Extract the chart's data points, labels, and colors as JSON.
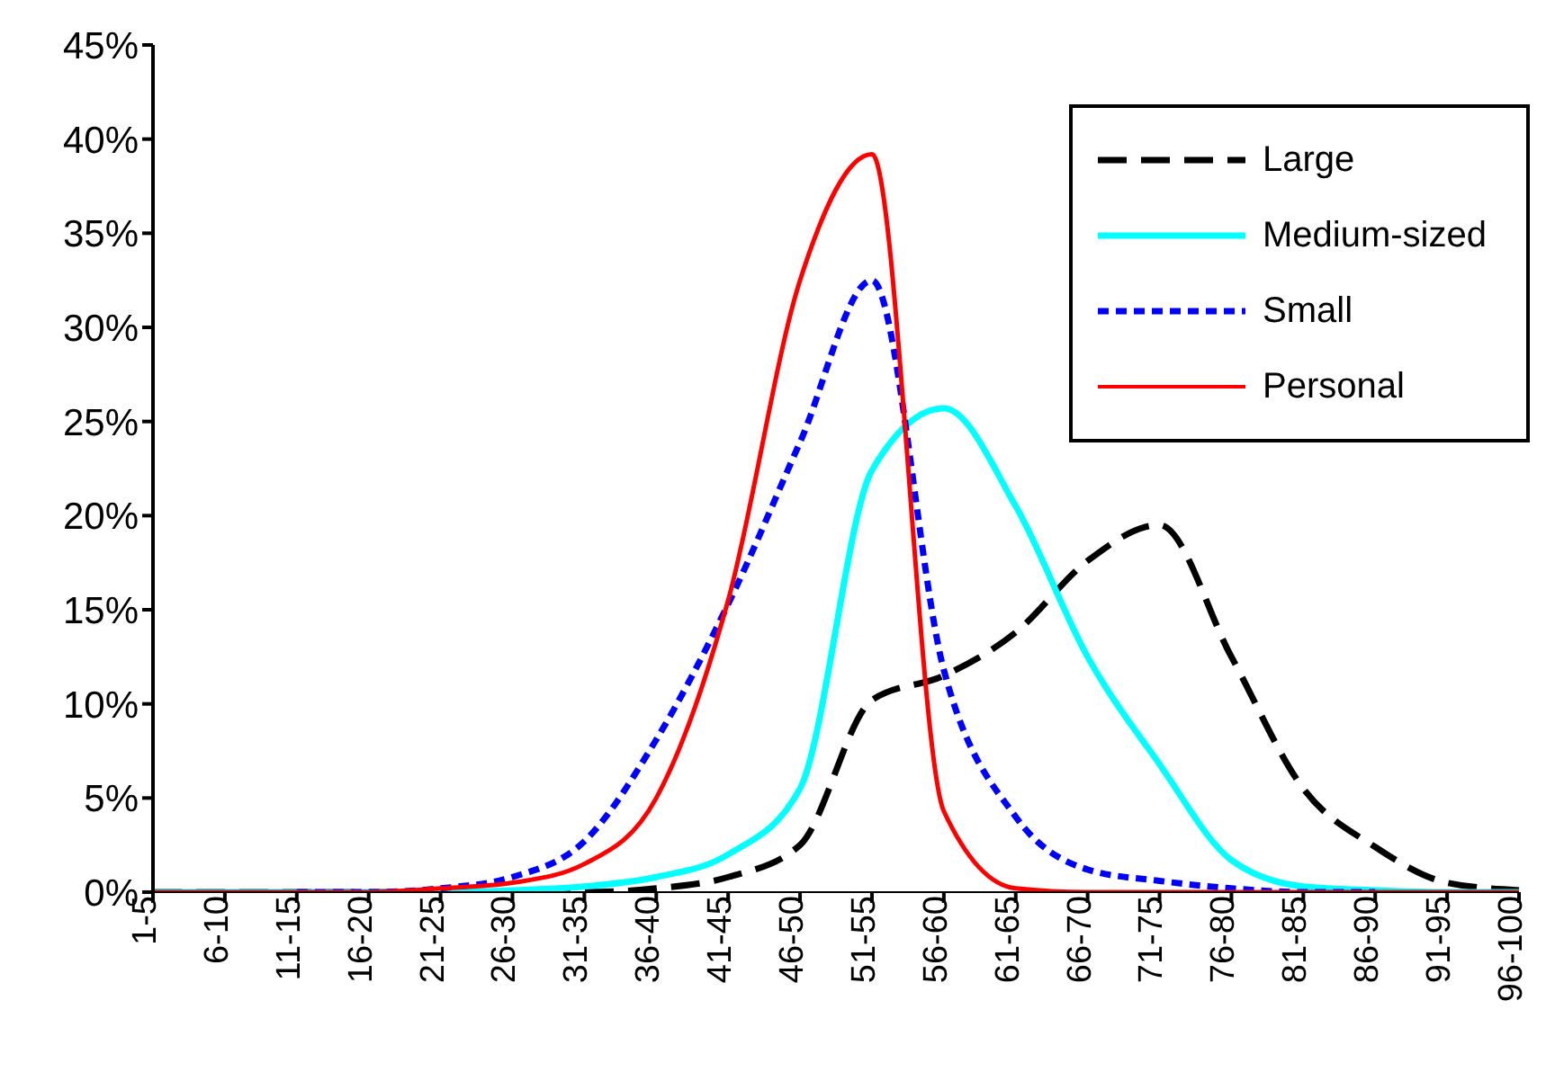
{
  "chart_data": {
    "type": "line",
    "categories": [
      "1-5",
      "6-10",
      "11-15",
      "16-20",
      "21-25",
      "26-30",
      "31-35",
      "36-40",
      "41-45",
      "46-50",
      "51-55",
      "56-60",
      "61-65",
      "66-70",
      "71-75",
      "76-80",
      "81-85",
      "86-90",
      "91-95",
      "96-100"
    ],
    "series": [
      {
        "name": "Large",
        "color": "#000000",
        "line_style": "dashed",
        "values": [
          0,
          0,
          0,
          0,
          0,
          0,
          0,
          0.2,
          0.8,
          2.5,
          10.2,
          11.5,
          13.8,
          17.6,
          19.5,
          12.5,
          5.5,
          2.4,
          0.5,
          0.1
        ]
      },
      {
        "name": "Medium-sized",
        "color": "#00ffff",
        "line_style": "solid",
        "values": [
          0,
          0,
          0,
          0,
          0,
          0.1,
          0.3,
          0.8,
          2,
          5.5,
          22.4,
          25.7,
          20.5,
          12.5,
          6.8,
          1.7,
          0.3,
          0.1,
          0,
          0
        ]
      },
      {
        "name": "Small",
        "color": "#0000ff",
        "line_style": "dotted",
        "values": [
          null,
          null,
          0,
          0,
          0.2,
          0.8,
          2.7,
          8.1,
          15.3,
          23.9,
          32.5,
          11.8,
          4,
          1.2,
          0.6,
          0.2,
          0,
          0,
          null,
          null
        ]
      },
      {
        "name": "Personal",
        "color": "#ff0000",
        "line_style": "solid",
        "values": [
          0,
          0,
          0,
          0,
          0.2,
          0.5,
          1.5,
          5,
          15.5,
          32.5,
          39.2,
          4.3,
          0.2,
          0,
          0,
          0,
          0,
          0,
          0,
          0
        ]
      }
    ],
    "ylim": [
      0,
      45
    ],
    "yticks": [
      {
        "value": 0,
        "label": "0%"
      },
      {
        "value": 5,
        "label": "5%"
      },
      {
        "value": 10,
        "label": "10%"
      },
      {
        "value": 15,
        "label": "15%"
      },
      {
        "value": 20,
        "label": "20%"
      },
      {
        "value": 25,
        "label": "25%"
      },
      {
        "value": 30,
        "label": "30%"
      },
      {
        "value": 35,
        "label": "35%"
      },
      {
        "value": 40,
        "label": "40%"
      },
      {
        "value": 45,
        "label": "45%"
      }
    ],
    "grid": false,
    "legend": "top right",
    "marker": "none"
  }
}
